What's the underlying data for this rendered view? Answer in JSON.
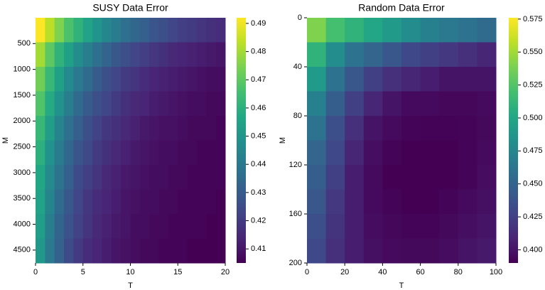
{
  "chart_data": [
    {
      "type": "heatmap",
      "title": "SUSY Data Error",
      "x_label": "T",
      "y_label": "M",
      "colormap": "viridis",
      "xlim": [
        0,
        20
      ],
      "xticks": [
        0,
        5,
        10,
        15,
        20
      ],
      "ylim": [
        0,
        4750
      ],
      "yticks": [
        500,
        1000,
        1500,
        2000,
        2500,
        3000,
        3500,
        4000,
        4500
      ],
      "zlim": [
        0.405,
        0.492
      ],
      "zticks": [
        0.41,
        0.42,
        0.43,
        0.44,
        0.45,
        0.46,
        0.47,
        0.48,
        0.49
      ],
      "z": [
        [
          0.492,
          0.483,
          0.475,
          0.467,
          0.461,
          0.455,
          0.45,
          0.445,
          0.441,
          0.437,
          0.434,
          0.431,
          0.428,
          0.426,
          0.423,
          0.421,
          0.42,
          0.418,
          0.417,
          0.416
        ],
        [
          0.48,
          0.47,
          0.461,
          0.454,
          0.447,
          0.442,
          0.437,
          0.433,
          0.429,
          0.426,
          0.423,
          0.421,
          0.419,
          0.417,
          0.415,
          0.414,
          0.413,
          0.412,
          0.411,
          0.41
        ],
        [
          0.473,
          0.463,
          0.454,
          0.446,
          0.44,
          0.435,
          0.43,
          0.426,
          0.423,
          0.42,
          0.418,
          0.416,
          0.414,
          0.413,
          0.412,
          0.411,
          0.41,
          0.409,
          0.408,
          0.408
        ],
        [
          0.468,
          0.458,
          0.449,
          0.442,
          0.435,
          0.43,
          0.426,
          0.423,
          0.42,
          0.417,
          0.415,
          0.414,
          0.412,
          0.411,
          0.41,
          0.409,
          0.408,
          0.408,
          0.407,
          0.407
        ],
        [
          0.463,
          0.453,
          0.444,
          0.437,
          0.431,
          0.426,
          0.422,
          0.419,
          0.417,
          0.415,
          0.413,
          0.411,
          0.41,
          0.409,
          0.409,
          0.408,
          0.407,
          0.407,
          0.407,
          0.406
        ],
        [
          0.46,
          0.449,
          0.441,
          0.434,
          0.428,
          0.424,
          0.42,
          0.417,
          0.415,
          0.413,
          0.411,
          0.41,
          0.409,
          0.408,
          0.408,
          0.407,
          0.407,
          0.406,
          0.406,
          0.406
        ],
        [
          0.457,
          0.446,
          0.438,
          0.431,
          0.425,
          0.421,
          0.418,
          0.415,
          0.413,
          0.411,
          0.41,
          0.409,
          0.408,
          0.408,
          0.407,
          0.407,
          0.406,
          0.406,
          0.406,
          0.406
        ],
        [
          0.455,
          0.444,
          0.435,
          0.429,
          0.423,
          0.419,
          0.416,
          0.414,
          0.412,
          0.41,
          0.409,
          0.408,
          0.408,
          0.407,
          0.407,
          0.406,
          0.406,
          0.406,
          0.406,
          0.405
        ],
        [
          0.453,
          0.442,
          0.433,
          0.427,
          0.422,
          0.418,
          0.415,
          0.413,
          0.411,
          0.41,
          0.408,
          0.408,
          0.407,
          0.407,
          0.406,
          0.406,
          0.406,
          0.406,
          0.405,
          0.405
        ],
        [
          0.451,
          0.44,
          0.432,
          0.425,
          0.42,
          0.416,
          0.414,
          0.412,
          0.41,
          0.409,
          0.408,
          0.407,
          0.407,
          0.406,
          0.406,
          0.406,
          0.405,
          0.405,
          0.405,
          0.405
        ]
      ]
    },
    {
      "type": "heatmap",
      "title": "Random Data Error",
      "x_label": "T",
      "y_label": "M",
      "colormap": "viridis",
      "xlim": [
        0,
        100
      ],
      "xticks": [
        0,
        20,
        40,
        60,
        80,
        100
      ],
      "ylim": [
        0,
        200
      ],
      "yticks": [
        0,
        40,
        80,
        120,
        160,
        200
      ],
      "zlim": [
        0.39,
        0.576
      ],
      "zticks": [
        {
          "value": 0.4,
          "label": "0.400"
        },
        {
          "value": 0.425,
          "label": "0.425"
        },
        {
          "value": 0.45,
          "label": "0.450"
        },
        {
          "value": 0.475,
          "label": "0.475"
        },
        {
          "value": 0.5,
          "label": "0.500"
        },
        {
          "value": 0.525,
          "label": "0.525"
        },
        {
          "value": 0.55,
          "label": "0.550"
        },
        {
          "value": 0.575,
          "label": "0.575"
        }
      ],
      "z": [
        [
          0.54,
          0.52,
          0.51,
          0.5,
          0.49,
          0.48,
          0.47,
          0.465,
          0.46,
          0.455
        ],
        [
          0.51,
          0.48,
          0.46,
          0.45,
          0.44,
          0.43,
          0.425,
          0.42,
          0.415,
          0.41
        ],
        [
          0.49,
          0.46,
          0.44,
          0.425,
          0.415,
          0.41,
          0.405,
          0.4,
          0.4,
          0.4
        ],
        [
          0.47,
          0.445,
          0.425,
          0.41,
          0.4,
          0.395,
          0.395,
          0.393,
          0.393,
          0.395
        ],
        [
          0.46,
          0.435,
          0.415,
          0.4,
          0.395,
          0.392,
          0.391,
          0.391,
          0.392,
          0.394
        ],
        [
          0.45,
          0.43,
          0.41,
          0.397,
          0.392,
          0.39,
          0.39,
          0.39,
          0.392,
          0.395
        ],
        [
          0.445,
          0.425,
          0.405,
          0.395,
          0.39,
          0.39,
          0.39,
          0.39,
          0.392,
          0.396
        ],
        [
          0.44,
          0.42,
          0.405,
          0.395,
          0.392,
          0.39,
          0.39,
          0.392,
          0.395,
          0.398
        ],
        [
          0.435,
          0.418,
          0.405,
          0.396,
          0.393,
          0.392,
          0.392,
          0.394,
          0.397,
          0.4
        ],
        [
          0.43,
          0.415,
          0.405,
          0.398,
          0.395,
          0.394,
          0.394,
          0.396,
          0.4,
          0.403
        ]
      ]
    }
  ]
}
